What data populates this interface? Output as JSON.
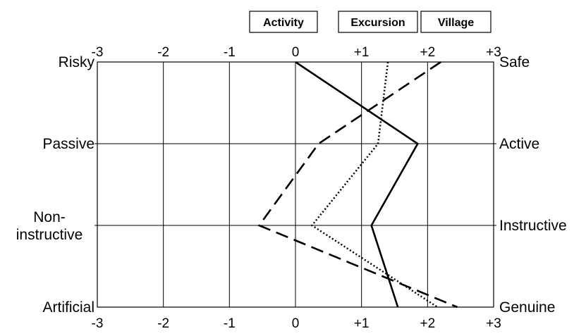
{
  "chart_data": {
    "type": "line",
    "orientation": "profile",
    "x_ticks": [
      "-3",
      "-2",
      "-1",
      "0",
      "+1",
      "+2",
      "+3"
    ],
    "xlim": [
      -3,
      3
    ],
    "grid": true,
    "legend_position": "top",
    "dimensions": [
      {
        "left": "Risky",
        "right": "Safe"
      },
      {
        "left": "Passive",
        "right": "Active"
      },
      {
        "left": "Non-\ninstructive",
        "right": "Instructive"
      },
      {
        "left": "Artificial",
        "right": "Genuine"
      }
    ],
    "series": [
      {
        "name": "Activity",
        "style": "solid",
        "values": [
          0.0,
          1.85,
          1.15,
          1.55
        ]
      },
      {
        "name": "Excursion",
        "style": "dotted",
        "values": [
          1.4,
          1.25,
          0.25,
          2.15
        ]
      },
      {
        "name": "Village",
        "style": "dashed",
        "values": [
          2.2,
          0.35,
          -0.55,
          2.45
        ]
      }
    ]
  }
}
